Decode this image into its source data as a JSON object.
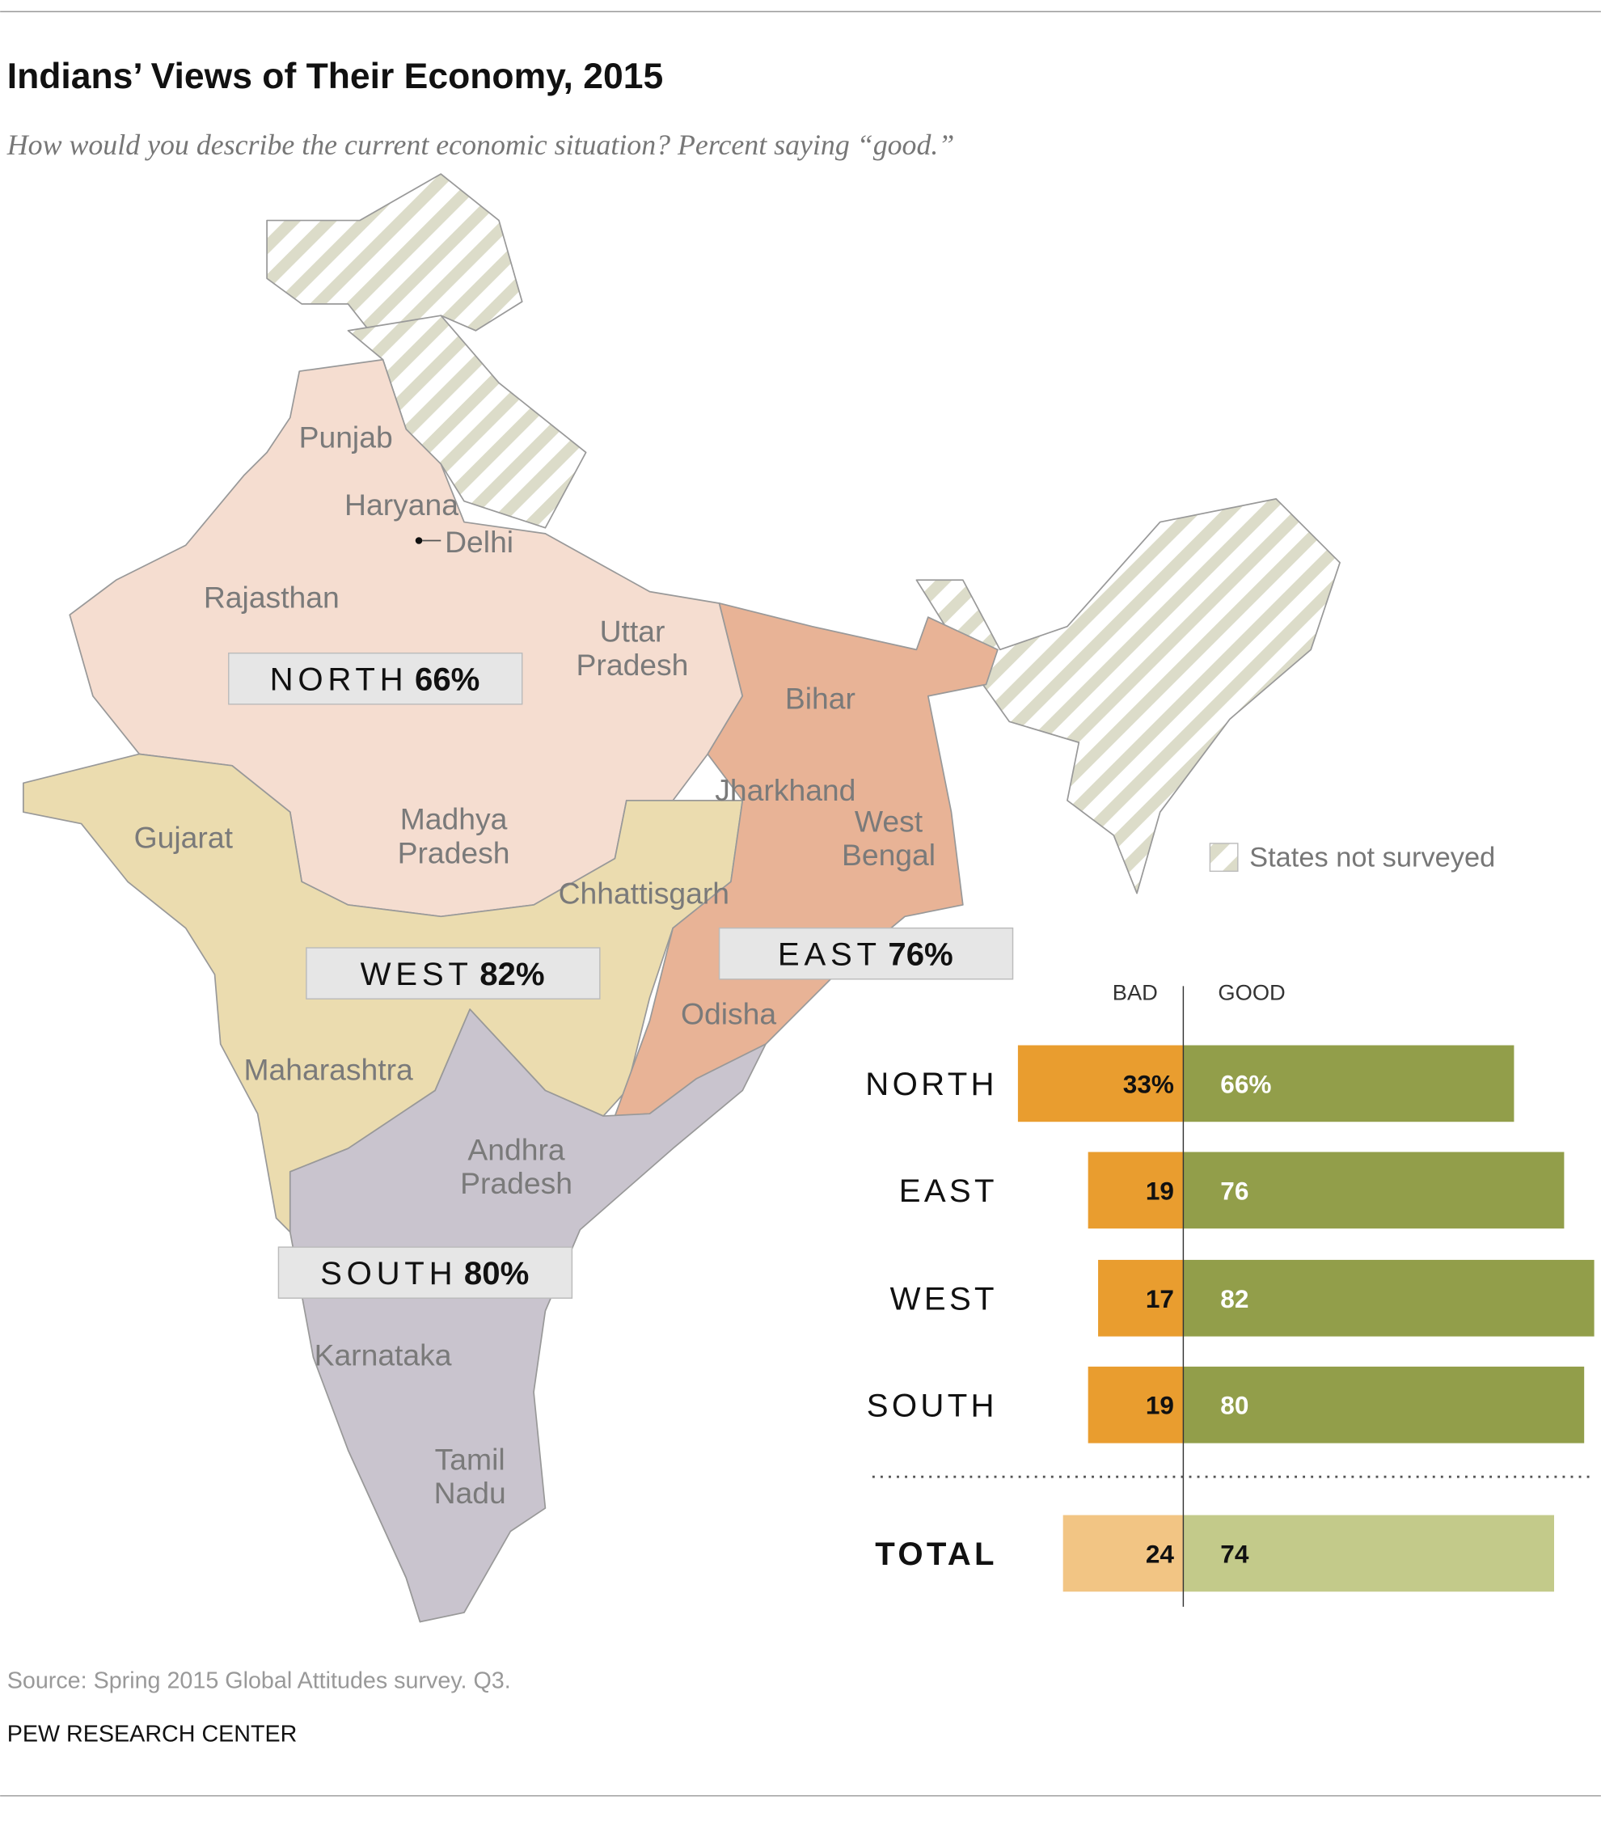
{
  "chart_data": {
    "type": "diverging_bar",
    "title": "Indians’ Views of Their Economy, 2015",
    "subtitle": "How would you describe the current economic situation? Percent saying “good.”",
    "categories": [
      "NORTH",
      "EAST",
      "WEST",
      "SOUTH",
      "TOTAL"
    ],
    "series": [
      {
        "name": "BAD",
        "side": "left",
        "colors": [
          "#e99d2f",
          "#e99d2f",
          "#e99d2f",
          "#e99d2f",
          "#f2c584"
        ],
        "values": [
          33,
          19,
          17,
          19,
          24
        ],
        "value_labels": [
          "33%",
          "19",
          "17",
          "19",
          "24"
        ]
      },
      {
        "name": "GOOD",
        "side": "right",
        "colors": [
          "#929e4a",
          "#929e4a",
          "#929e4a",
          "#929e4a",
          "#c3ca8a"
        ],
        "values": [
          66,
          76,
          82,
          80,
          74
        ],
        "value_labels": [
          "66%",
          "76",
          "82",
          "80",
          "74"
        ]
      }
    ]
  },
  "map": {
    "regions": [
      {
        "name": "NORTH",
        "label": "66%"
      },
      {
        "name": "WEST",
        "label": "82%"
      },
      {
        "name": "EAST",
        "label": "76%"
      },
      {
        "name": "SOUTH",
        "label": "80%"
      }
    ],
    "states": [
      [
        "Punjab"
      ],
      [
        "Haryana"
      ],
      [
        "Delhi"
      ],
      [
        "Rajasthan"
      ],
      [
        "Uttar",
        "Pradesh"
      ],
      [
        "Bihar"
      ],
      [
        "Jharkhand"
      ],
      [
        "West",
        "Bengal"
      ],
      [
        "Madhya",
        "Pradesh"
      ],
      [
        "Gujarat"
      ],
      [
        "Chhattisgarh"
      ],
      [
        "Odisha"
      ],
      [
        "Maharashtra"
      ],
      [
        "Andhra",
        "Pradesh"
      ],
      [
        "Karnataka"
      ],
      [
        "Tamil",
        "Nadu"
      ]
    ],
    "legend": "States not surveyed"
  },
  "source": "Source: Spring 2015 Global Attitudes survey. Q3.",
  "credit": "PEW RESEARCH CENTER"
}
